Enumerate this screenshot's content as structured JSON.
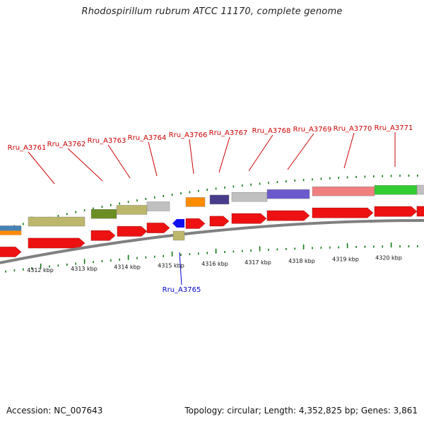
{
  "title": "Rhodospirillum rubrum ATCC 11170, complete genome",
  "footer": {
    "accession": "Accession: NC_007643",
    "summary": "Topology: circular; Length: 4,352,825 bp; Genes: 3,861"
  },
  "colors": {
    "forward_cds": "#ee1111",
    "reverse_cds": "#1010ee",
    "label_forward": "#cc0000",
    "label_reverse": "#0000cc",
    "tick": "#117711",
    "backbone": "#808080"
  },
  "ruler": {
    "tick_labels": [
      "4312 kbp",
      "4313 kbp",
      "4314 kbp",
      "4315 kbp",
      "4316 kbp",
      "4317 kbp",
      "4318 kbp",
      "4319 kbp",
      "4320 kbp"
    ]
  },
  "genes": [
    {
      "label": "Rru_A3761",
      "strand": "forward"
    },
    {
      "label": "Rru_A3762",
      "strand": "forward"
    },
    {
      "label": "Rru_A3763",
      "strand": "forward"
    },
    {
      "label": "Rru_A3764",
      "strand": "forward"
    },
    {
      "label": "Rru_A3766",
      "strand": "forward"
    },
    {
      "label": "Rru_A3767",
      "strand": "forward"
    },
    {
      "label": "Rru_A3768",
      "strand": "forward"
    },
    {
      "label": "Rru_A3769",
      "strand": "forward"
    },
    {
      "label": "Rru_A3770",
      "strand": "forward"
    },
    {
      "label": "Rru_A3771",
      "strand": "forward"
    },
    {
      "label": "Rru_A3765",
      "strand": "reverse"
    }
  ]
}
